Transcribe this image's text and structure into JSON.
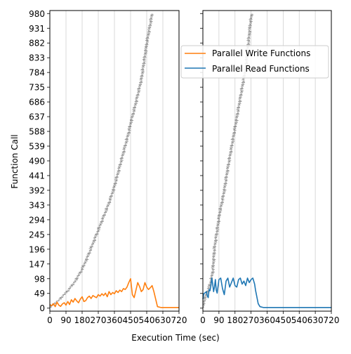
{
  "chart_data": {
    "type": "line",
    "xlabel": "Execution Time (sec)",
    "ylabel": "Function Call",
    "xlim": [
      0,
      720
    ],
    "ylim": [
      -10,
      990
    ],
    "x_ticks": [
      0,
      90,
      180,
      270,
      360,
      450,
      540,
      630,
      720
    ],
    "y_ticks": [
      0,
      49,
      98,
      147,
      196,
      245,
      294,
      343,
      392,
      441,
      490,
      539,
      588,
      637,
      686,
      735,
      784,
      833,
      882,
      931,
      980
    ],
    "x_grid": true,
    "y_grid": false,
    "shared_y": true,
    "legend": {
      "location": "upper-left of right panel",
      "entries": [
        "Parallel Write Functions",
        "Parallel Read Functions"
      ]
    },
    "colors": {
      "write": "#ff7f0e",
      "read": "#1f77b4",
      "calls": "#404040"
    },
    "panels": [
      {
        "id": "left",
        "call_timeline": {
          "description": "function call start/end spans (dark ticks)",
          "points": [
            [
              0,
              0
            ],
            [
              10,
              8
            ],
            [
              30,
              18
            ],
            [
              60,
              32
            ],
            [
              90,
              52
            ],
            [
              120,
              72
            ],
            [
              150,
              98
            ],
            [
              180,
              130
            ],
            [
              210,
              170
            ],
            [
              240,
              215
            ],
            [
              270,
              260
            ],
            [
              300,
              305
            ],
            [
              330,
              350
            ],
            [
              360,
              405
            ],
            [
              380,
              450
            ],
            [
              400,
              495
            ],
            [
              420,
              540
            ],
            [
              440,
              585
            ],
            [
              450,
              615
            ],
            [
              470,
              660
            ],
            [
              490,
              710
            ],
            [
              510,
              760
            ],
            [
              520,
              800
            ],
            [
              530,
              840
            ],
            [
              540,
              880
            ],
            [
              550,
              915
            ],
            [
              560,
              945
            ],
            [
              570,
              980
            ]
          ]
        },
        "series": [
          {
            "name": "Parallel Write Functions",
            "color": "#ff7f0e",
            "x": [
              0,
              10,
              20,
              30,
              40,
              50,
              60,
              70,
              80,
              90,
              100,
              110,
              120,
              130,
              140,
              150,
              160,
              170,
              180,
              190,
              200,
              210,
              220,
              230,
              240,
              250,
              260,
              270,
              280,
              290,
              300,
              310,
              320,
              330,
              340,
              350,
              360,
              370,
              380,
              390,
              400,
              410,
              420,
              430,
              440,
              450,
              460,
              470,
              480,
              490,
              500,
              510,
              520,
              530,
              540,
              550,
              560,
              570,
              580,
              590,
              600,
              620,
              640,
              660,
              680,
              700,
              720
            ],
            "values": [
              12,
              8,
              15,
              5,
              20,
              10,
              6,
              14,
              18,
              10,
              22,
              12,
              28,
              20,
              32,
              24,
              18,
              30,
              38,
              22,
              25,
              35,
              40,
              32,
              42,
              38,
              35,
              45,
              40,
              48,
              42,
              50,
              38,
              55,
              45,
              52,
              48,
              58,
              52,
              60,
              55,
              65,
              62,
              70,
              85,
              98,
              45,
              35,
              60,
              85,
              72,
              55,
              62,
              85,
              70,
              62,
              68,
              75,
              55,
              30,
              5,
              2,
              2,
              2,
              2,
              2,
              2
            ]
          }
        ]
      },
      {
        "id": "right",
        "call_timeline": {
          "description": "function call start/end spans (dark ticks)",
          "points": [
            [
              0,
              0
            ],
            [
              5,
              20
            ],
            [
              15,
              40
            ],
            [
              30,
              60
            ],
            [
              45,
              90
            ],
            [
              55,
              120
            ],
            [
              60,
              160
            ],
            [
              65,
              200
            ],
            [
              75,
              240
            ],
            [
              85,
              280
            ],
            [
              95,
              320
            ],
            [
              110,
              360
            ],
            [
              125,
              410
            ],
            [
              135,
              450
            ],
            [
              150,
              500
            ],
            [
              165,
              550
            ],
            [
              180,
              600
            ],
            [
              195,
              650
            ],
            [
              210,
              700
            ],
            [
              225,
              750
            ],
            [
              240,
              800
            ],
            [
              250,
              850
            ],
            [
              258,
              900
            ],
            [
              265,
              945
            ],
            [
              275,
              980
            ]
          ]
        },
        "series": [
          {
            "name": "Parallel Read Functions",
            "color": "#1f77b4",
            "x": [
              0,
              5,
              10,
              15,
              20,
              25,
              30,
              35,
              40,
              45,
              50,
              55,
              60,
              65,
              70,
              75,
              80,
              90,
              100,
              110,
              120,
              130,
              140,
              150,
              160,
              170,
              180,
              190,
              200,
              210,
              220,
              230,
              240,
              250,
              260,
              270,
              280,
              285,
              290,
              295,
              300,
              305,
              310,
              320,
              340,
              360,
              400,
              450,
              500,
              540,
              600,
              650,
              700,
              720
            ],
            "values": [
              30,
              48,
              50,
              52,
              55,
              40,
              35,
              62,
              58,
              75,
              100,
              80,
              55,
              70,
              95,
              60,
              50,
              95,
              100,
              65,
              45,
              90,
              100,
              70,
              85,
              100,
              75,
              70,
              95,
              100,
              80,
              90,
              75,
              100,
              85,
              95,
              100,
              90,
              80,
              60,
              45,
              30,
              15,
              5,
              2,
              2,
              2,
              2,
              2,
              2,
              2,
              2,
              2,
              2
            ]
          }
        ]
      }
    ]
  }
}
